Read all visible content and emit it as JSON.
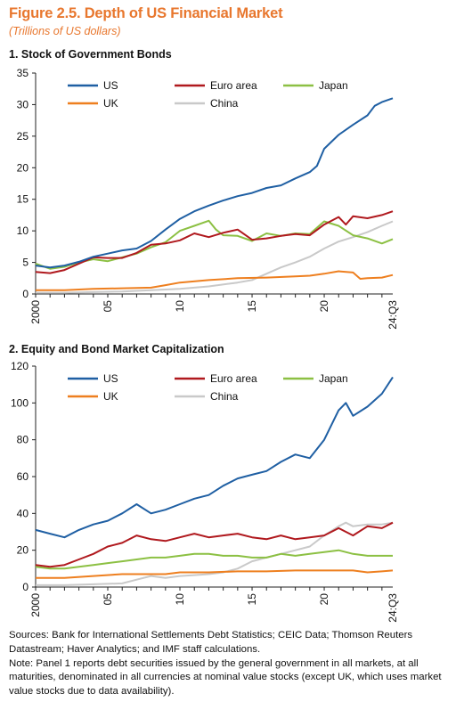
{
  "figure": {
    "title": "Figure 2.5. Depth of US Financial Market",
    "subtitle": "(Trillions of US dollars)"
  },
  "colors": {
    "US": "#1f5fa3",
    "Euro area": "#b0191e",
    "Japan": "#8cc043",
    "UK": "#ee7f1f",
    "China": "#c9c9c9"
  },
  "chart_data": [
    {
      "type": "line",
      "title": "1. Stock of Government Bonds",
      "xlim": [
        2000,
        2024.75
      ],
      "ylim": [
        0,
        35
      ],
      "yticks": [
        0,
        5,
        10,
        15,
        20,
        25,
        30,
        35
      ],
      "xticks": [
        {
          "value": 2000,
          "label": "2000"
        },
        {
          "value": 2005,
          "label": "05"
        },
        {
          "value": 2010,
          "label": "10"
        },
        {
          "value": 2015,
          "label": "15"
        },
        {
          "value": 2020,
          "label": "20"
        },
        {
          "value": 2024.75,
          "label": "24:Q3"
        }
      ],
      "legend": "top-left",
      "series": [
        {
          "name": "US",
          "points": [
            [
              2000,
              4.5
            ],
            [
              2001,
              4.2
            ],
            [
              2002,
              4.5
            ],
            [
              2003,
              5.1
            ],
            [
              2004,
              5.9
            ],
            [
              2005,
              6.4
            ],
            [
              2006,
              6.9
            ],
            [
              2007,
              7.2
            ],
            [
              2008,
              8.4
            ],
            [
              2009,
              10.2
            ],
            [
              2010,
              11.9
            ],
            [
              2011,
              13.1
            ],
            [
              2012,
              14.0
            ],
            [
              2013,
              14.8
            ],
            [
              2014,
              15.5
            ],
            [
              2015,
              16.0
            ],
            [
              2016,
              16.8
            ],
            [
              2017,
              17.2
            ],
            [
              2018,
              18.3
            ],
            [
              2019,
              19.3
            ],
            [
              2019.5,
              20.3
            ],
            [
              2020,
              23.0
            ],
            [
              2021,
              25.2
            ],
            [
              2022,
              26.8
            ],
            [
              2023,
              28.3
            ],
            [
              2023.5,
              29.8
            ],
            [
              2024,
              30.4
            ],
            [
              2024.75,
              31.0
            ]
          ]
        },
        {
          "name": "Euro area",
          "points": [
            [
              2000,
              3.5
            ],
            [
              2001,
              3.3
            ],
            [
              2002,
              3.8
            ],
            [
              2003,
              4.8
            ],
            [
              2004,
              5.8
            ],
            [
              2005,
              5.7
            ],
            [
              2006,
              5.7
            ],
            [
              2007,
              6.5
            ],
            [
              2008,
              7.8
            ],
            [
              2009,
              8.0
            ],
            [
              2010,
              8.5
            ],
            [
              2011,
              9.6
            ],
            [
              2012,
              9.0
            ],
            [
              2013,
              9.7
            ],
            [
              2014,
              10.2
            ],
            [
              2015,
              8.6
            ],
            [
              2016,
              8.8
            ],
            [
              2017,
              9.2
            ],
            [
              2018,
              9.5
            ],
            [
              2019,
              9.3
            ],
            [
              2020,
              11.0
            ],
            [
              2021,
              12.2
            ],
            [
              2021.5,
              11.0
            ],
            [
              2022,
              12.3
            ],
            [
              2023,
              12.0
            ],
            [
              2024,
              12.5
            ],
            [
              2024.75,
              13.1
            ]
          ]
        },
        {
          "name": "Japan",
          "points": [
            [
              2000,
              4.8
            ],
            [
              2001,
              4.0
            ],
            [
              2002,
              4.3
            ],
            [
              2003,
              5.0
            ],
            [
              2004,
              5.5
            ],
            [
              2005,
              5.2
            ],
            [
              2006,
              5.8
            ],
            [
              2007,
              6.4
            ],
            [
              2008,
              7.4
            ],
            [
              2009,
              8.2
            ],
            [
              2010,
              10.0
            ],
            [
              2011,
              10.8
            ],
            [
              2012,
              11.6
            ],
            [
              2012.5,
              10.2
            ],
            [
              2013,
              9.3
            ],
            [
              2014,
              9.2
            ],
            [
              2015,
              8.4
            ],
            [
              2016,
              9.6
            ],
            [
              2017,
              9.2
            ],
            [
              2018,
              9.6
            ],
            [
              2019,
              9.5
            ],
            [
              2020,
              11.5
            ],
            [
              2021,
              10.8
            ],
            [
              2022,
              9.3
            ],
            [
              2023,
              8.8
            ],
            [
              2024,
              8.0
            ],
            [
              2024.75,
              8.7
            ]
          ]
        },
        {
          "name": "UK",
          "points": [
            [
              2000,
              0.6
            ],
            [
              2002,
              0.6
            ],
            [
              2004,
              0.8
            ],
            [
              2006,
              0.9
            ],
            [
              2008,
              1.0
            ],
            [
              2009,
              1.4
            ],
            [
              2010,
              1.8
            ],
            [
              2012,
              2.2
            ],
            [
              2014,
              2.5
            ],
            [
              2016,
              2.6
            ],
            [
              2018,
              2.8
            ],
            [
              2019,
              2.9
            ],
            [
              2020,
              3.2
            ],
            [
              2021,
              3.6
            ],
            [
              2022,
              3.4
            ],
            [
              2022.5,
              2.4
            ],
            [
              2023,
              2.5
            ],
            [
              2024,
              2.6
            ],
            [
              2024.75,
              3.0
            ]
          ]
        },
        {
          "name": "China",
          "points": [
            [
              2000,
              0.2
            ],
            [
              2002,
              0.2
            ],
            [
              2004,
              0.3
            ],
            [
              2006,
              0.4
            ],
            [
              2008,
              0.6
            ],
            [
              2010,
              0.8
            ],
            [
              2012,
              1.2
            ],
            [
              2014,
              1.8
            ],
            [
              2015,
              2.2
            ],
            [
              2016,
              3.2
            ],
            [
              2017,
              4.2
            ],
            [
              2018,
              5.0
            ],
            [
              2019,
              5.9
            ],
            [
              2020,
              7.2
            ],
            [
              2021,
              8.3
            ],
            [
              2022,
              9.0
            ],
            [
              2023,
              9.8
            ],
            [
              2024,
              10.8
            ],
            [
              2024.75,
              11.5
            ]
          ]
        }
      ]
    },
    {
      "type": "line",
      "title": "2. Equity and Bond Market Capitalization",
      "xlim": [
        2000,
        2024.75
      ],
      "ylim": [
        0,
        120
      ],
      "yticks": [
        0,
        20,
        40,
        60,
        80,
        100,
        120
      ],
      "xticks": [
        {
          "value": 2000,
          "label": "2000"
        },
        {
          "value": 2005,
          "label": "05"
        },
        {
          "value": 2010,
          "label": "10"
        },
        {
          "value": 2015,
          "label": "15"
        },
        {
          "value": 2020,
          "label": "20"
        },
        {
          "value": 2024.75,
          "label": "24:Q3"
        }
      ],
      "legend": "top-left",
      "series": [
        {
          "name": "US",
          "points": [
            [
              2000,
              31
            ],
            [
              2001,
              29
            ],
            [
              2002,
              27
            ],
            [
              2003,
              31
            ],
            [
              2004,
              34
            ],
            [
              2005,
              36
            ],
            [
              2006,
              40
            ],
            [
              2007,
              45
            ],
            [
              2008,
              40
            ],
            [
              2009,
              42
            ],
            [
              2010,
              45
            ],
            [
              2011,
              48
            ],
            [
              2012,
              50
            ],
            [
              2013,
              55
            ],
            [
              2014,
              59
            ],
            [
              2015,
              61
            ],
            [
              2016,
              63
            ],
            [
              2017,
              68
            ],
            [
              2018,
              72
            ],
            [
              2019,
              70
            ],
            [
              2020,
              80
            ],
            [
              2021,
              96
            ],
            [
              2021.5,
              100
            ],
            [
              2022,
              93
            ],
            [
              2023,
              98
            ],
            [
              2024,
              105
            ],
            [
              2024.75,
              114
            ]
          ]
        },
        {
          "name": "Euro area",
          "points": [
            [
              2000,
              12
            ],
            [
              2001,
              11
            ],
            [
              2002,
              12
            ],
            [
              2003,
              15
            ],
            [
              2004,
              18
            ],
            [
              2005,
              22
            ],
            [
              2006,
              24
            ],
            [
              2007,
              28
            ],
            [
              2008,
              26
            ],
            [
              2009,
              25
            ],
            [
              2010,
              27
            ],
            [
              2011,
              29
            ],
            [
              2012,
              27
            ],
            [
              2013,
              28
            ],
            [
              2014,
              29
            ],
            [
              2015,
              27
            ],
            [
              2016,
              26
            ],
            [
              2017,
              28
            ],
            [
              2018,
              26
            ],
            [
              2019,
              27
            ],
            [
              2020,
              28
            ],
            [
              2021,
              32
            ],
            [
              2022,
              28
            ],
            [
              2023,
              33
            ],
            [
              2024,
              32
            ],
            [
              2024.75,
              35
            ]
          ]
        },
        {
          "name": "Japan",
          "points": [
            [
              2000,
              11
            ],
            [
              2001,
              10
            ],
            [
              2002,
              10
            ],
            [
              2003,
              11
            ],
            [
              2004,
              12
            ],
            [
              2005,
              13
            ],
            [
              2006,
              14
            ],
            [
              2007,
              15
            ],
            [
              2008,
              16
            ],
            [
              2009,
              16
            ],
            [
              2010,
              17
            ],
            [
              2011,
              18
            ],
            [
              2012,
              18
            ],
            [
              2013,
              17
            ],
            [
              2014,
              17
            ],
            [
              2015,
              16
            ],
            [
              2016,
              16
            ],
            [
              2017,
              18
            ],
            [
              2018,
              17
            ],
            [
              2019,
              18
            ],
            [
              2020,
              19
            ],
            [
              2021,
              20
            ],
            [
              2022,
              18
            ],
            [
              2023,
              17
            ],
            [
              2024,
              17
            ],
            [
              2024.75,
              17
            ]
          ]
        },
        {
          "name": "UK",
          "points": [
            [
              2000,
              5
            ],
            [
              2002,
              5
            ],
            [
              2004,
              6
            ],
            [
              2006,
              7
            ],
            [
              2008,
              7
            ],
            [
              2009,
              7
            ],
            [
              2010,
              8
            ],
            [
              2012,
              8
            ],
            [
              2014,
              8.5
            ],
            [
              2016,
              8.5
            ],
            [
              2018,
              9
            ],
            [
              2020,
              9
            ],
            [
              2022,
              9
            ],
            [
              2023,
              8
            ],
            [
              2024,
              8.5
            ],
            [
              2024.75,
              9
            ]
          ]
        },
        {
          "name": "China",
          "points": [
            [
              2000,
              1
            ],
            [
              2002,
              1
            ],
            [
              2004,
              1.5
            ],
            [
              2006,
              2
            ],
            [
              2007,
              4
            ],
            [
              2008,
              6
            ],
            [
              2009,
              5
            ],
            [
              2010,
              6
            ],
            [
              2011,
              6.5
            ],
            [
              2012,
              7
            ],
            [
              2013,
              8
            ],
            [
              2014,
              10
            ],
            [
              2015,
              14
            ],
            [
              2016,
              16
            ],
            [
              2017,
              18
            ],
            [
              2018,
              20
            ],
            [
              2019,
              22
            ],
            [
              2020,
              28
            ],
            [
              2021,
              33
            ],
            [
              2021.5,
              35
            ],
            [
              2022,
              33
            ],
            [
              2023,
              34
            ],
            [
              2024,
              34
            ],
            [
              2024.75,
              35
            ]
          ]
        }
      ]
    }
  ],
  "notes": {
    "sources": "Sources: Bank for International Settlements Debt Statistics; CEIC Data; Thomson Reuters Datastream; Haver Analytics; and IMF staff calculations.",
    "note": "Note: Panel 1 reports debt securities issued by the general government in all markets, at all maturities, denominated in all currencies at nominal value stocks (except UK, which uses market value stocks due to data availability)."
  }
}
